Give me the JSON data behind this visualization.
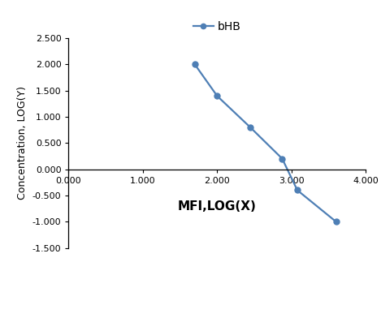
{
  "x": [
    1.699,
    2.0,
    2.447,
    2.875,
    3.079,
    3.602
  ],
  "y": [
    2.0,
    1.398,
    0.799,
    0.204,
    -0.398,
    -1.0
  ],
  "line_color": "#4e7fb5",
  "marker_color": "#4e7fb5",
  "marker_style": "o",
  "marker_size": 5,
  "line_width": 1.6,
  "xlabel": "MFI,LOG(X)",
  "ylabel": "Concentration, LOG(Y)",
  "legend_label": "bHB",
  "xlim": [
    0.0,
    4.0
  ],
  "ylim": [
    -1.5,
    2.5
  ],
  "xticks": [
    0.0,
    1.0,
    2.0,
    3.0,
    4.0
  ],
  "yticks": [
    -1.5,
    -1.0,
    -0.5,
    0.0,
    0.5,
    1.0,
    1.5,
    2.0,
    2.5
  ],
  "xlabel_fontsize": 11,
  "ylabel_fontsize": 9,
  "legend_fontsize": 10,
  "tick_fontsize": 8,
  "background_color": "#ffffff"
}
